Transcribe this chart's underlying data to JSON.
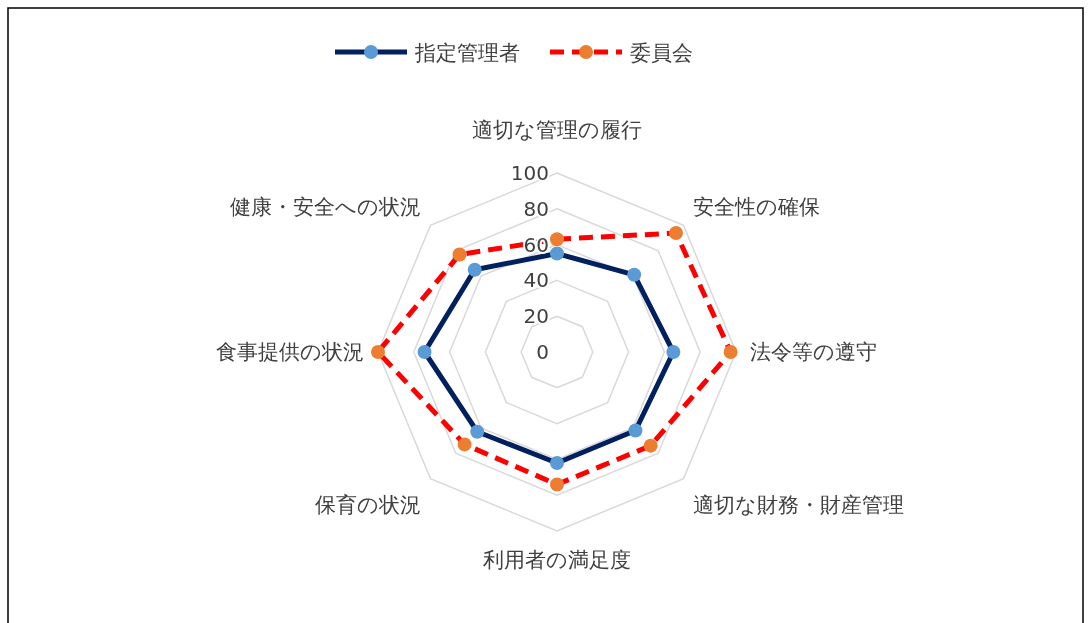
{
  "chart_data": {
    "type": "radar",
    "categories": [
      "適切な管理の履行",
      "安全性の確保",
      "法令等の遵守",
      "適切な財務・財産管理",
      "利用者の満足度",
      "保育の状況",
      "食事提供の状況",
      "健康・安全への状況"
    ],
    "series": [
      {
        "name": "指定管理者",
        "color": "#002060",
        "colors": [
          "#5b9bd5",
          "#5b9bd5",
          "#5b9bd5",
          "#5b9bd5",
          "#5b9bd5",
          "#5b9bd5",
          "#5b9bd5",
          "#5b9bd5"
        ],
        "line_style": "solid",
        "values": [
          55,
          61,
          65,
          62,
          62,
          63,
          74,
          65
        ]
      },
      {
        "name": "委員会",
        "color": "#ff0000",
        "colors": [
          "#ed7d31",
          "#ed7d31",
          "#ed7d31",
          "#ed7d31",
          "#ed7d31",
          "#ed7d31",
          "#ed7d31",
          "#ed7d31"
        ],
        "line_style": "dashed",
        "values": [
          63,
          94,
          97,
          74,
          74,
          73,
          100,
          77
        ]
      }
    ],
    "ylim": [
      0,
      100
    ],
    "yticks": [
      0,
      20,
      40,
      60,
      80,
      100
    ],
    "marker": "circle",
    "grid": true,
    "legend": "top"
  }
}
